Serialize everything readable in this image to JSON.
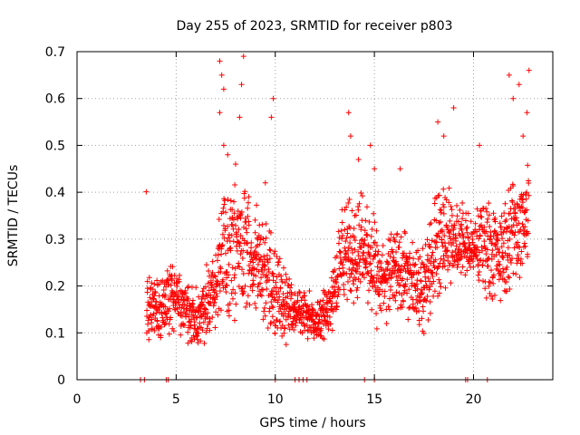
{
  "chart_data": {
    "type": "scatter",
    "title": "Day 255 of 2023, SRMTID for receiver p803",
    "xlabel": "GPS time / hours",
    "ylabel": "SRMTID / TECUs",
    "xlim": [
      0,
      24
    ],
    "ylim": [
      0,
      0.7
    ],
    "xticks": [
      0,
      5,
      10,
      15,
      20
    ],
    "xtick_labels": [
      "0",
      "5",
      "10",
      "15",
      "20"
    ],
    "yticks": [
      0,
      0.1,
      0.2,
      0.3,
      0.4,
      0.5,
      0.6,
      0.7
    ],
    "ytick_labels": [
      "0",
      "0.1",
      "0.2",
      "0.3",
      "0.4",
      "0.5",
      "0.6",
      "0.7"
    ],
    "grid": true,
    "marker": "+",
    "color": "#ff0000",
    "series": [
      {
        "name": "SRMTID",
        "zero_points_x": [
          3.2,
          3.4,
          4.5,
          4.6,
          10.0,
          11.0,
          11.2,
          11.4,
          11.6,
          14.5,
          15.0,
          19.6,
          19.7,
          20.7
        ],
        "envelope": [
          {
            "x": 3.5,
            "lo": 0.08,
            "hi": 0.23
          },
          {
            "x": 4.0,
            "lo": 0.07,
            "hi": 0.22
          },
          {
            "x": 4.5,
            "lo": 0.09,
            "hi": 0.25
          },
          {
            "x": 5.0,
            "lo": 0.09,
            "hi": 0.25
          },
          {
            "x": 5.5,
            "lo": 0.07,
            "hi": 0.22
          },
          {
            "x": 6.0,
            "lo": 0.05,
            "hi": 0.2
          },
          {
            "x": 6.5,
            "lo": 0.07,
            "hi": 0.25
          },
          {
            "x": 7.0,
            "lo": 0.1,
            "hi": 0.3
          },
          {
            "x": 7.5,
            "lo": 0.1,
            "hi": 0.45
          },
          {
            "x": 8.0,
            "lo": 0.12,
            "hi": 0.45
          },
          {
            "x": 8.5,
            "lo": 0.13,
            "hi": 0.45
          },
          {
            "x": 9.0,
            "lo": 0.12,
            "hi": 0.4
          },
          {
            "x": 9.5,
            "lo": 0.1,
            "hi": 0.35
          },
          {
            "x": 10.0,
            "lo": 0.08,
            "hi": 0.3
          },
          {
            "x": 10.5,
            "lo": 0.05,
            "hi": 0.25
          },
          {
            "x": 11.0,
            "lo": 0.1,
            "hi": 0.2
          },
          {
            "x": 11.5,
            "lo": 0.08,
            "hi": 0.2
          },
          {
            "x": 12.0,
            "lo": 0.08,
            "hi": 0.18
          },
          {
            "x": 12.5,
            "lo": 0.08,
            "hi": 0.2
          },
          {
            "x": 13.0,
            "lo": 0.1,
            "hi": 0.3
          },
          {
            "x": 13.5,
            "lo": 0.15,
            "hi": 0.4
          },
          {
            "x": 14.0,
            "lo": 0.15,
            "hi": 0.4
          },
          {
            "x": 14.5,
            "lo": 0.15,
            "hi": 0.42
          },
          {
            "x": 15.0,
            "lo": 0.1,
            "hi": 0.35
          },
          {
            "x": 15.5,
            "lo": 0.1,
            "hi": 0.3
          },
          {
            "x": 16.0,
            "lo": 0.13,
            "hi": 0.35
          },
          {
            "x": 16.5,
            "lo": 0.13,
            "hi": 0.33
          },
          {
            "x": 17.0,
            "lo": 0.1,
            "hi": 0.3
          },
          {
            "x": 17.5,
            "lo": 0.08,
            "hi": 0.3
          },
          {
            "x": 18.0,
            "lo": 0.15,
            "hi": 0.4
          },
          {
            "x": 18.5,
            "lo": 0.18,
            "hi": 0.45
          },
          {
            "x": 19.0,
            "lo": 0.2,
            "hi": 0.4
          },
          {
            "x": 19.5,
            "lo": 0.2,
            "hi": 0.38
          },
          {
            "x": 20.0,
            "lo": 0.2,
            "hi": 0.35
          },
          {
            "x": 20.5,
            "lo": 0.18,
            "hi": 0.42
          },
          {
            "x": 21.0,
            "lo": 0.15,
            "hi": 0.38
          },
          {
            "x": 21.5,
            "lo": 0.15,
            "hi": 0.38
          },
          {
            "x": 22.0,
            "lo": 0.2,
            "hi": 0.45
          },
          {
            "x": 22.5,
            "lo": 0.2,
            "hi": 0.45
          },
          {
            "x": 22.8,
            "lo": 0.2,
            "hi": 0.5
          }
        ],
        "outliers": [
          [
            7.2,
            0.68
          ],
          [
            7.3,
            0.65
          ],
          [
            7.4,
            0.62
          ],
          [
            7.2,
            0.57
          ],
          [
            7.4,
            0.5
          ],
          [
            7.6,
            0.48
          ],
          [
            8.4,
            0.69
          ],
          [
            8.3,
            0.63
          ],
          [
            8.2,
            0.56
          ],
          [
            8.0,
            0.46
          ],
          [
            9.9,
            0.6
          ],
          [
            9.8,
            0.56
          ],
          [
            9.5,
            0.42
          ],
          [
            13.7,
            0.57
          ],
          [
            13.8,
            0.52
          ],
          [
            14.2,
            0.47
          ],
          [
            14.8,
            0.5
          ],
          [
            15.0,
            0.45
          ],
          [
            16.3,
            0.45
          ],
          [
            18.2,
            0.55
          ],
          [
            18.5,
            0.52
          ],
          [
            19.0,
            0.58
          ],
          [
            20.3,
            0.5
          ],
          [
            21.8,
            0.65
          ],
          [
            22.0,
            0.6
          ],
          [
            22.3,
            0.63
          ],
          [
            22.5,
            0.52
          ],
          [
            22.8,
            0.66
          ],
          [
            22.7,
            0.57
          ]
        ]
      }
    ]
  }
}
